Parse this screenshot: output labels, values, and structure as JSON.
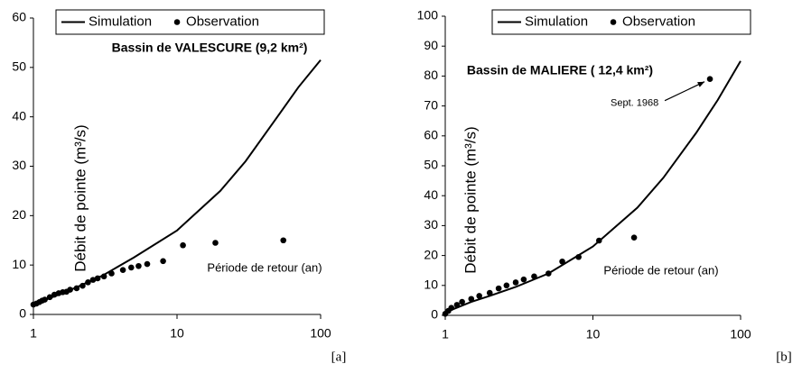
{
  "chart_data": [
    {
      "type": "line",
      "title": "Bassin de VALESCURE (9,2 km²)",
      "xlabel": "Période de retour (an)",
      "ylabel": "Débit de pointe (m³/s)",
      "panel_label": "[a]",
      "xscale": "log",
      "xlim": [
        1,
        100
      ],
      "xticks": [
        1,
        10,
        100
      ],
      "ylim": [
        0,
        60
      ],
      "yticks": [
        0,
        10,
        20,
        30,
        40,
        50,
        60
      ],
      "legend": "top-left",
      "series": [
        {
          "name": "Simulation",
          "color": "#000000",
          "kind": "line",
          "x": [
            1,
            1.5,
            2,
            3,
            5,
            10,
            20,
            30,
            50,
            70,
            100
          ],
          "values": [
            2,
            4,
            5.5,
            7.8,
            11.5,
            17,
            25,
            31,
            40,
            46,
            51.5
          ]
        },
        {
          "name": "Observation",
          "color": "#000000",
          "kind": "points",
          "x": [
            1,
            1.05,
            1.1,
            1.15,
            1.2,
            1.3,
            1.4,
            1.5,
            1.6,
            1.7,
            1.8,
            2,
            2.2,
            2.4,
            2.6,
            2.8,
            3.1,
            3.5,
            4.2,
            4.8,
            5.4,
            6.2,
            8,
            11,
            18.5,
            55
          ],
          "values": [
            2,
            2.2,
            2.5,
            2.8,
            3,
            3.5,
            4,
            4.3,
            4.5,
            4.6,
            5,
            5.3,
            5.8,
            6.5,
            7,
            7.3,
            7.7,
            8.3,
            9,
            9.5,
            9.8,
            10.2,
            10.8,
            14,
            14.5,
            15
          ]
        }
      ]
    },
    {
      "type": "line",
      "title": "Bassin de MALIERE ( 12,4 km²)",
      "xlabel": "Période de retour (an)",
      "ylabel": "Débit de pointe (m³/s)",
      "panel_label": "[b]",
      "xscale": "log",
      "xlim": [
        1,
        100
      ],
      "xticks": [
        1,
        10,
        100
      ],
      "ylim": [
        0,
        100
      ],
      "yticks": [
        0,
        10,
        20,
        30,
        40,
        50,
        60,
        70,
        80,
        90,
        100
      ],
      "legend": "top-left",
      "annotation": "Sept. 1968",
      "series": [
        {
          "name": "Simulation",
          "color": "#000000",
          "kind": "line",
          "x": [
            1,
            1.5,
            2,
            3,
            5,
            10,
            20,
            30,
            50,
            70,
            100
          ],
          "values": [
            1,
            4.5,
            6.5,
            9.5,
            14,
            23,
            36,
            46,
            61,
            72,
            85
          ]
        },
        {
          "name": "Observation",
          "color": "#000000",
          "kind": "points",
          "x": [
            1,
            1.05,
            1.1,
            1.2,
            1.3,
            1.5,
            1.7,
            2,
            2.3,
            2.6,
            3,
            3.4,
            4,
            5,
            6.2,
            8,
            11,
            19,
            62
          ],
          "values": [
            0.5,
            1.5,
            2.5,
            3.5,
            4.5,
            5.5,
            6.5,
            7.5,
            9,
            10,
            11,
            12,
            13,
            14,
            18,
            19.5,
            25,
            26,
            79
          ]
        }
      ]
    }
  ]
}
